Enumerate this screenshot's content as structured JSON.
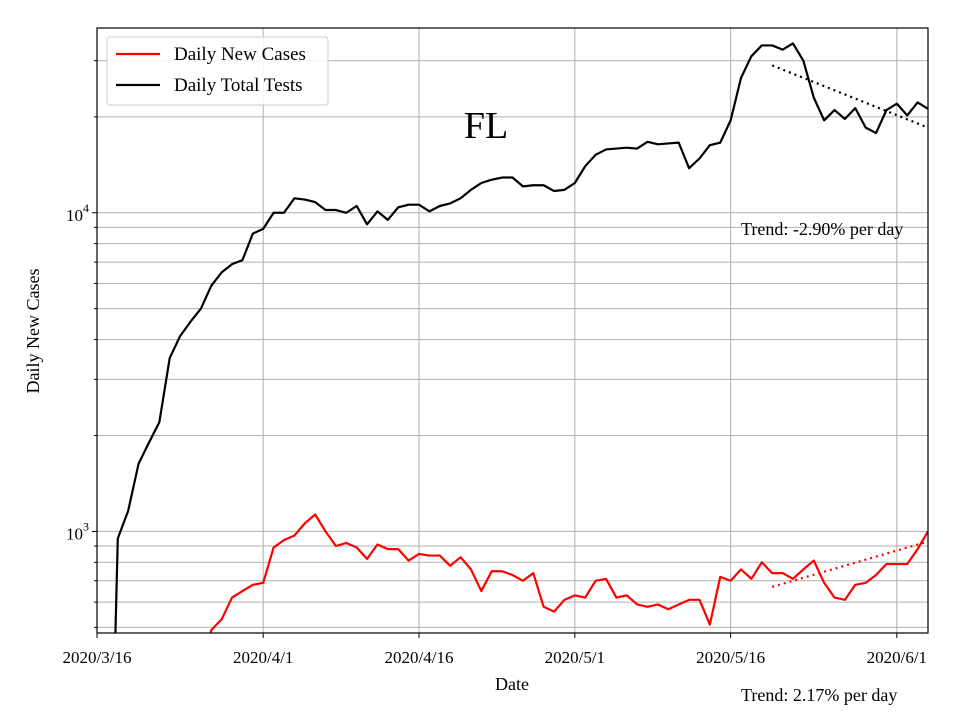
{
  "chart_data": {
    "type": "line",
    "title": "FL",
    "xlabel": "Date",
    "ylabel": "Daily New Cases",
    "yscale": "log",
    "ylim": [
      480,
      38000
    ],
    "xlim": [
      "2020-03-16",
      "2020-06-04"
    ],
    "grid": true,
    "legend_position": "top-left",
    "x_tick_labels": [
      {
        "date": "2020-03-16",
        "label": "2020/3/16"
      },
      {
        "date": "2020-04-01",
        "label": "2020/4/1"
      },
      {
        "date": "2020-04-16",
        "label": "2020/4/16"
      },
      {
        "date": "2020-05-01",
        "label": "2020/5/1"
      },
      {
        "date": "2020-05-16",
        "label": "2020/5/16"
      },
      {
        "date": "2020-06-01",
        "label": "2020/6/1"
      }
    ],
    "y_tick_labels": [
      {
        "value": 1000,
        "base": "10",
        "exp": "3"
      },
      {
        "value": 10000,
        "base": "10",
        "exp": "4"
      }
    ],
    "x": [
      "2020-03-17",
      "2020-03-18",
      "2020-03-19",
      "2020-03-20",
      "2020-03-21",
      "2020-03-22",
      "2020-03-23",
      "2020-03-24",
      "2020-03-25",
      "2020-03-26",
      "2020-03-27",
      "2020-03-28",
      "2020-03-29",
      "2020-03-30",
      "2020-03-31",
      "2020-04-01",
      "2020-04-02",
      "2020-04-03",
      "2020-04-04",
      "2020-04-05",
      "2020-04-06",
      "2020-04-07",
      "2020-04-08",
      "2020-04-09",
      "2020-04-10",
      "2020-04-11",
      "2020-04-12",
      "2020-04-13",
      "2020-04-14",
      "2020-04-15",
      "2020-04-16",
      "2020-04-17",
      "2020-04-18",
      "2020-04-19",
      "2020-04-20",
      "2020-04-21",
      "2020-04-22",
      "2020-04-23",
      "2020-04-24",
      "2020-04-25",
      "2020-04-26",
      "2020-04-27",
      "2020-04-28",
      "2020-04-29",
      "2020-04-30",
      "2020-05-01",
      "2020-05-02",
      "2020-05-03",
      "2020-05-04",
      "2020-05-05",
      "2020-05-06",
      "2020-05-07",
      "2020-05-08",
      "2020-05-09",
      "2020-05-10",
      "2020-05-11",
      "2020-05-12",
      "2020-05-13",
      "2020-05-14",
      "2020-05-15",
      "2020-05-16",
      "2020-05-17",
      "2020-05-18",
      "2020-05-19",
      "2020-05-20",
      "2020-05-21",
      "2020-05-22",
      "2020-05-23",
      "2020-05-24",
      "2020-05-25",
      "2020-05-26",
      "2020-05-27",
      "2020-05-28",
      "2020-05-29",
      "2020-05-30",
      "2020-05-31",
      "2020-06-01",
      "2020-06-02",
      "2020-06-03",
      "2020-06-04"
    ],
    "series": [
      {
        "name": "Daily New Cases",
        "color": "#ff0000",
        "style": "solid",
        "values": [
          null,
          null,
          null,
          null,
          null,
          null,
          null,
          null,
          null,
          null,
          490,
          530,
          620,
          650,
          680,
          690,
          890,
          940,
          970,
          1060,
          1130,
          1000,
          900,
          920,
          890,
          820,
          910,
          880,
          880,
          810,
          850,
          840,
          840,
          780,
          830,
          760,
          650,
          750,
          750,
          730,
          700,
          740,
          580,
          560,
          610,
          630,
          620,
          700,
          710,
          620,
          630,
          590,
          580,
          590,
          570,
          590,
          610,
          610,
          510,
          720,
          700,
          760,
          710,
          800,
          740,
          740,
          710,
          760,
          810,
          690,
          620,
          610,
          680,
          690,
          730,
          790,
          790,
          790,
          880,
          1000
        ]
      },
      {
        "name": "Daily Total Tests",
        "color": "#000000",
        "style": "solid",
        "values": [
          null,
          950,
          1160,
          1630,
          1900,
          2200,
          3500,
          4100,
          4550,
          5000,
          5900,
          6500,
          6900,
          7100,
          8600,
          8900,
          10000,
          10000,
          11100,
          11000,
          10800,
          10200,
          10200,
          10000,
          10500,
          9200,
          10100,
          9500,
          10400,
          10600,
          10600,
          10100,
          10500,
          10700,
          11100,
          11800,
          12400,
          12700,
          12900,
          12900,
          12100,
          12200,
          12200,
          11700,
          11800,
          12400,
          14000,
          15200,
          15800,
          15900,
          16000,
          15900,
          16700,
          16400,
          16500,
          16600,
          13800,
          14800,
          16300,
          16600,
          19500,
          26500,
          31000,
          33500,
          33500,
          32500,
          34000,
          30000,
          23000,
          19500,
          21000,
          19700,
          21300,
          18500,
          17800,
          21000,
          22000,
          20200,
          22200,
          21200
        ]
      }
    ],
    "trend_lines": [
      {
        "applies_to": "Daily Total Tests",
        "style": "dotted",
        "color": "#000000",
        "x_start": "2020-05-20",
        "x_end": "2020-06-04",
        "y_start": 29000,
        "y_end": 18500
      },
      {
        "applies_to": "Daily New Cases",
        "style": "dotted",
        "color": "#ff0000",
        "x_start": "2020-05-20",
        "x_end": "2020-06-04",
        "y_start": 670,
        "y_end": 930
      }
    ],
    "annotations": [
      {
        "id": "tests",
        "text": "Trend: -2.90% per day"
      },
      {
        "id": "cases",
        "text": "Trend: 2.17% per day"
      }
    ]
  }
}
